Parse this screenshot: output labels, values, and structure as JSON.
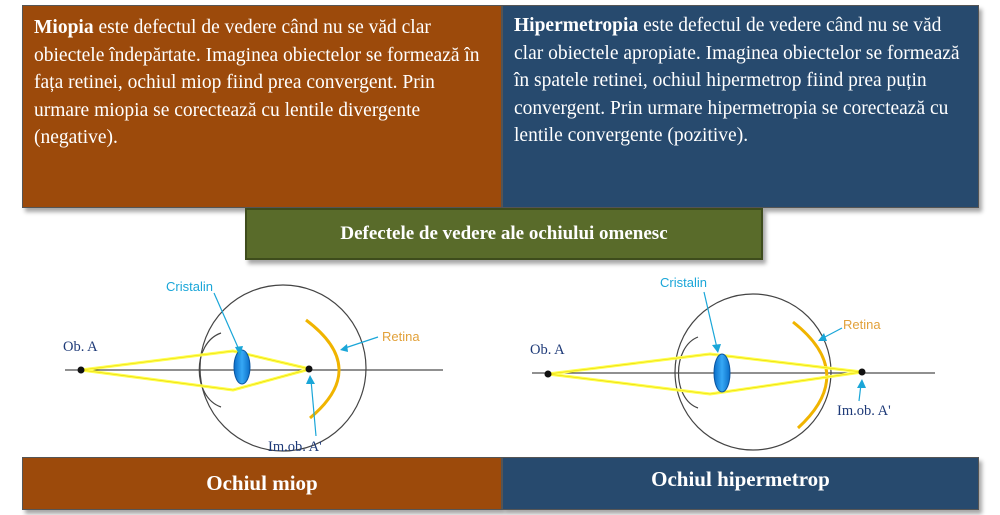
{
  "miopia_panel": {
    "term": "Miopia",
    "text": " este defectul de vedere când nu se văd clar obiectele îndepărtate. Imaginea obiectelor se formează în fața retinei, ochiul miop fiind prea convergent. Prin urmare miopia se corectează cu lentile divergente (negative)."
  },
  "hiper_panel": {
    "term": "Hipermetropia",
    "text": " este defectul de vedere când nu se văd clar obiectele apropiate. Imaginea obiectelor se formează în spatele retinei, ochiul hipermetrop fiind prea puțin convergent. Prin urmare hipermetropia se corectează cu lentile convergente (pozitive)."
  },
  "title": "Defectele de vedere ale ochiului omenesc",
  "diagram_labels": {
    "cristalin": "Cristalin",
    "retina": "Retina",
    "object": "Ob. A",
    "image": "Im.ob. A'"
  },
  "bottom_labels": {
    "miop": "Ochiul miop",
    "hiper": "Ochiul hipermetrop"
  },
  "colors": {
    "brown": "#9c4a0b",
    "navy": "#274a6e",
    "olive": "#596b2a",
    "ray_yellow": "#ffff4d",
    "retina_gold": "#f0b400",
    "lens_blue": "#1f8ee0"
  }
}
